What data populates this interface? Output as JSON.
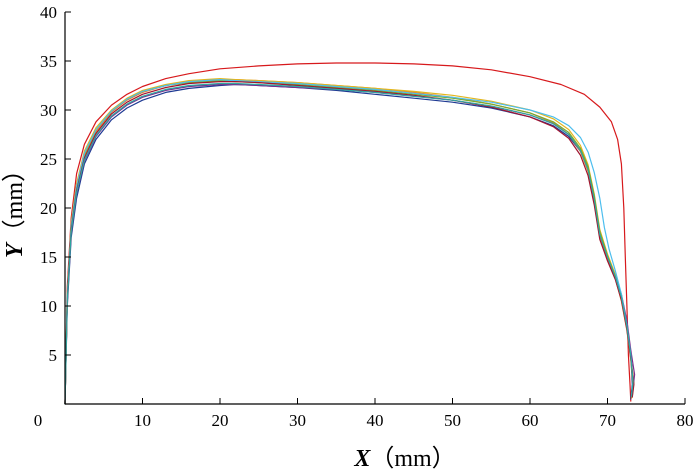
{
  "chart_data": {
    "type": "line",
    "title": "",
    "xlabel": {
      "var": "X",
      "unit": "（mm）"
    },
    "ylabel": {
      "var": "Y",
      "unit": "（mm）"
    },
    "xlim": [
      0,
      80
    ],
    "ylim": [
      0,
      40
    ],
    "xticks": [
      0,
      10,
      20,
      30,
      40,
      50,
      60,
      70,
      80
    ],
    "yticks": [
      5,
      10,
      15,
      20,
      25,
      30,
      35,
      40
    ],
    "origin_label": "0",
    "grid": false,
    "legend": "none",
    "series": [
      {
        "color": "#d7191c",
        "x": [
          0,
          0.3,
          0.8,
          1.5,
          2.5,
          4,
          6,
          8,
          10,
          13,
          16,
          20,
          25,
          30,
          35,
          40,
          45,
          50,
          55,
          60,
          64,
          67,
          69,
          70.5,
          71.3,
          71.8,
          72.1,
          72.3,
          72.5,
          72.7,
          72.9,
          73
        ],
        "y": [
          0,
          12,
          19,
          23.5,
          26.5,
          28.8,
          30.5,
          31.6,
          32.4,
          33.2,
          33.7,
          34.2,
          34.5,
          34.7,
          34.8,
          34.8,
          34.7,
          34.5,
          34.1,
          33.4,
          32.6,
          31.6,
          30.3,
          28.8,
          27,
          24.5,
          20,
          15,
          10,
          5,
          2,
          0.3
        ]
      },
      {
        "color": "#1f3a93",
        "x": [
          0,
          0.3,
          0.8,
          1.5,
          2.5,
          4,
          6,
          8,
          10,
          13,
          16,
          20,
          22,
          25,
          30,
          35,
          40,
          45,
          50,
          55,
          60,
          63,
          65,
          66.5,
          67.5,
          68.3,
          69,
          70,
          71,
          71.8,
          72.5,
          73,
          73.2,
          73
        ],
        "y": [
          0,
          10,
          17,
          21,
          24.5,
          27,
          29,
          30.2,
          31,
          31.8,
          32.2,
          32.5,
          32.6,
          32.5,
          32.3,
          32,
          31.6,
          31.2,
          30.8,
          30.2,
          29.3,
          28.4,
          27.3,
          25.8,
          24,
          21,
          17.5,
          15,
          13,
          11,
          8,
          5,
          2,
          0.5
        ]
      },
      {
        "color": "#e8812b",
        "x": [
          0,
          0.3,
          0.8,
          1.5,
          2.5,
          4,
          6,
          8,
          10,
          13,
          16,
          20,
          22,
          25,
          30,
          35,
          40,
          45,
          50,
          55,
          60,
          63,
          65,
          66.5,
          67.5,
          68.3,
          69,
          70,
          71,
          71.8,
          72.5,
          73,
          73.3,
          73.1
        ],
        "y": [
          0,
          11,
          18,
          22,
          25.3,
          27.8,
          29.8,
          31,
          31.8,
          32.5,
          32.9,
          33.1,
          33.1,
          33,
          32.8,
          32.5,
          32.2,
          31.8,
          31.3,
          30.6,
          29.7,
          28.7,
          27.5,
          25.8,
          23.7,
          20.5,
          17,
          14.8,
          12.8,
          10.5,
          7.5,
          4.5,
          2,
          0.6
        ]
      },
      {
        "color": "#e3b61e",
        "x": [
          0,
          0.3,
          0.8,
          1.5,
          2.5,
          4,
          6,
          8,
          10,
          13,
          16,
          20,
          22,
          25,
          30,
          35,
          40,
          45,
          50,
          55,
          60,
          63,
          65,
          66.5,
          67.5,
          68.3,
          69,
          70,
          71,
          71.8,
          72.5,
          73,
          73.4,
          73.2
        ],
        "y": [
          0,
          11,
          18.5,
          22.5,
          25.8,
          28.2,
          30,
          31.2,
          32,
          32.6,
          33,
          33.2,
          33.1,
          33,
          32.8,
          32.5,
          32.2,
          31.9,
          31.5,
          30.9,
          30,
          29.1,
          28,
          26.4,
          24.4,
          21.4,
          17.8,
          15.3,
          13.2,
          11,
          7.8,
          4.8,
          2.2,
          0.8
        ]
      },
      {
        "color": "#7b2d8e",
        "x": [
          0,
          0.3,
          0.8,
          1.5,
          2.5,
          4,
          6,
          8,
          10,
          13,
          16,
          20,
          22,
          25,
          30,
          35,
          40,
          45,
          50,
          55,
          60,
          63,
          65,
          66.5,
          67.5,
          68.3,
          69,
          70,
          71,
          71.8,
          72.5,
          73,
          73.5,
          73.2
        ],
        "y": [
          0,
          10.5,
          17.5,
          21.5,
          24.8,
          27.3,
          29.3,
          30.5,
          31.3,
          32,
          32.4,
          32.6,
          32.6,
          32.5,
          32.3,
          32.1,
          31.8,
          31.4,
          31,
          30.4,
          29.5,
          28.6,
          27.5,
          25.9,
          24,
          21,
          17.3,
          15,
          13,
          11.2,
          8.5,
          5.5,
          3,
          1
        ]
      },
      {
        "color": "#77ac30",
        "x": [
          0,
          0.3,
          0.8,
          1.5,
          2.5,
          4,
          6,
          8,
          10,
          13,
          16,
          20,
          22,
          25,
          30,
          35,
          40,
          45,
          50,
          55,
          60,
          63,
          65,
          66.5,
          67.5,
          68.3,
          69,
          70,
          71,
          71.8,
          72.5,
          73,
          73.3,
          73.1
        ],
        "y": [
          0,
          11,
          18,
          22,
          25.5,
          28,
          29.9,
          31.1,
          31.9,
          32.5,
          32.8,
          33,
          32.9,
          32.8,
          32.6,
          32.3,
          32,
          31.6,
          31.2,
          30.6,
          29.7,
          28.8,
          27.7,
          26.1,
          24.2,
          21.2,
          17.6,
          15.1,
          13,
          10.8,
          7.7,
          4.7,
          2.1,
          0.7
        ]
      },
      {
        "color": "#4dbeee",
        "x": [
          0,
          0.3,
          0.8,
          1.5,
          2.5,
          4,
          6,
          8,
          10,
          13,
          16,
          20,
          22,
          25,
          30,
          35,
          40,
          45,
          50,
          55,
          60,
          63,
          65,
          66.5,
          67.5,
          68.3,
          69,
          69.6,
          70.2,
          71,
          71.8,
          72.5,
          73,
          73.3,
          73.1
        ],
        "y": [
          0,
          11,
          18.2,
          22.2,
          25.6,
          28,
          29.9,
          31.1,
          31.9,
          32.5,
          32.9,
          33.1,
          33,
          32.9,
          32.7,
          32.4,
          32.1,
          31.7,
          31.3,
          30.8,
          30,
          29.3,
          28.4,
          27.2,
          25.7,
          23.6,
          21,
          18,
          15.8,
          13.6,
          11.2,
          8,
          5,
          2.3,
          0.8
        ]
      },
      {
        "color": "#a2142f",
        "x": [
          0,
          0.3,
          0.8,
          1.5,
          2.5,
          4,
          6,
          8,
          10,
          13,
          16,
          20,
          22,
          25,
          30,
          35,
          40,
          45,
          50,
          55,
          60,
          63,
          65,
          66.5,
          67.5,
          68.3,
          69,
          70,
          71,
          71.8,
          72.5,
          73,
          73.4,
          73.2
        ],
        "y": [
          0,
          10.8,
          17.8,
          21.8,
          25.1,
          27.6,
          29.6,
          30.8,
          31.6,
          32.3,
          32.7,
          32.9,
          32.9,
          32.8,
          32.5,
          32.2,
          31.9,
          31.5,
          31,
          30.3,
          29.3,
          28.3,
          27.1,
          25.4,
          23.3,
          20.3,
          16.8,
          14.6,
          12.7,
          10.6,
          7.6,
          4.6,
          2,
          0.7
        ]
      },
      {
        "color": "#2ca7a0",
        "x": [
          0,
          0.3,
          0.8,
          1.5,
          2.5,
          4,
          6,
          8,
          10,
          13,
          16,
          20,
          22,
          25,
          30,
          35,
          40,
          45,
          50,
          55,
          60,
          63,
          65,
          66.5,
          67.5,
          68.3,
          69,
          70,
          71,
          71.8,
          72.5,
          73,
          73.3,
          73.1
        ],
        "y": [
          0,
          10.6,
          17.6,
          21.6,
          24.9,
          27.4,
          29.4,
          30.6,
          31.4,
          32.1,
          32.5,
          32.7,
          32.7,
          32.6,
          32.4,
          32.1,
          31.8,
          31.4,
          31,
          30.4,
          29.5,
          28.6,
          27.5,
          25.9,
          23.9,
          20.9,
          17.3,
          15,
          13,
          10.9,
          7.9,
          4.9,
          2.3,
          0.8
        ]
      }
    ]
  }
}
